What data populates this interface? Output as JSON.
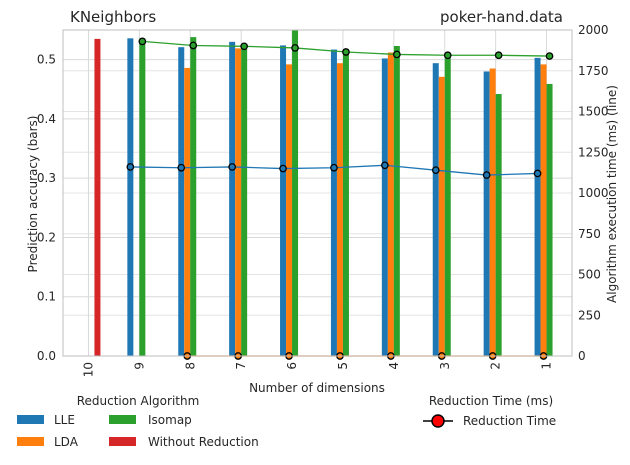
{
  "chart_data": {
    "type": "bar",
    "title_left": "KNeighbors",
    "title_right": "poker-hand.data",
    "xlabel": "Number of dimensions",
    "ylabel": "Prediction accuracy (bars)",
    "y2label": "Algorithm execution time (ms) (line)",
    "categories": [
      "10",
      "9",
      "8",
      "7",
      "6",
      "5",
      "4",
      "3",
      "2",
      "1"
    ],
    "ylim": [
      0,
      0.55
    ],
    "yticks": [
      "0.0",
      "0.1",
      "0.2",
      "0.3",
      "0.4",
      "0.5"
    ],
    "y2lim": [
      0,
      2000
    ],
    "y2ticks": [
      "0",
      "250",
      "500",
      "750",
      "1000",
      "1250",
      "1500",
      "1750",
      "2000"
    ],
    "grid": true,
    "series": [
      {
        "name": "LLE",
        "color": "#1f77b4",
        "values": [
          null,
          0.536,
          0.521,
          0.53,
          0.524,
          0.517,
          0.502,
          0.494,
          0.48,
          0.503
        ]
      },
      {
        "name": "LDA",
        "color": "#ff7f0e",
        "values": [
          null,
          null,
          0.486,
          0.519,
          0.492,
          0.494,
          0.512,
          0.471,
          0.485,
          0.492
        ]
      },
      {
        "name": "Isomap",
        "color": "#2ca02c",
        "values": [
          null,
          0.536,
          0.538,
          0.527,
          0.55,
          0.518,
          0.523,
          0.512,
          0.442,
          0.459
        ]
      },
      {
        "name": "Without Reduction",
        "color": "#d62728",
        "values": [
          0.535,
          null,
          null,
          null,
          null,
          null,
          null,
          null,
          null,
          null
        ]
      }
    ],
    "lines": [
      {
        "name": "LLE",
        "color": "#1f77b4",
        "values": [
          null,
          1160,
          1155,
          1160,
          1150,
          1155,
          1170,
          1140,
          1110,
          1120
        ]
      },
      {
        "name": "LDA",
        "color": "#ff7f0e",
        "values": [
          null,
          null,
          0,
          0,
          0,
          0,
          0,
          0,
          0,
          0
        ]
      },
      {
        "name": "Isomap",
        "color": "#2ca02c",
        "values": [
          null,
          1930,
          1905,
          1900,
          1890,
          1865,
          1850,
          1845,
          1845,
          1840
        ]
      }
    ],
    "legend_title": "Reduction Algorithm",
    "legend2_title": "Reduction Time (ms)",
    "legend2_label": "Reduction Time",
    "legend_placement": "bottom"
  }
}
